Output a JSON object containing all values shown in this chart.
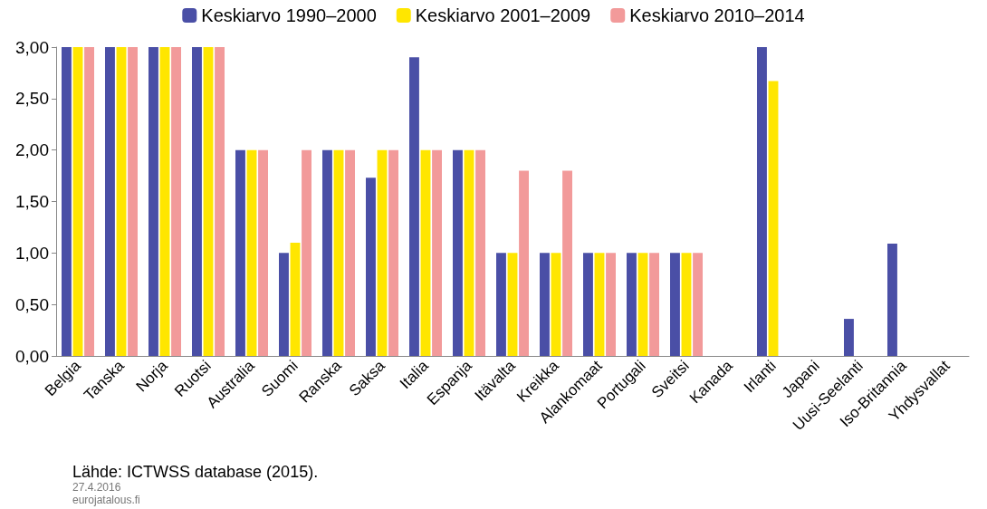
{
  "chart_data": {
    "type": "bar",
    "categories": [
      "Belgia",
      "Tanska",
      "Norja",
      "Ruotsi",
      "Australia",
      "Suomi",
      "Ranska",
      "Saksa",
      "Italia",
      "Espanja",
      "Itävalta",
      "Kreikka",
      "Alankomaat",
      "Portugali",
      "Sveitsi",
      "Kanada",
      "Irlanti",
      "Japani",
      "Uusi-Seelanti",
      "Iso-Britannia",
      "Yhdysvallat"
    ],
    "series": [
      {
        "name": "Keskiarvo 1990–2000",
        "color": "#4a4fa6",
        "values": [
          3,
          3,
          3,
          3,
          2,
          1,
          2,
          1.73,
          2.9,
          2,
          1,
          1,
          1,
          1,
          1,
          0,
          3,
          0,
          0.36,
          1.09,
          0
        ]
      },
      {
        "name": "Keskiarvo 2001–2009",
        "color": "#ffe600",
        "values": [
          3,
          3,
          3,
          3,
          2,
          1.1,
          2,
          2,
          2,
          2,
          1,
          1,
          1,
          1,
          1,
          0,
          2.67,
          0,
          0,
          0,
          0
        ]
      },
      {
        "name": "Keskiarvo 2010–2014",
        "color": "#f29a9a",
        "values": [
          3,
          3,
          3,
          3,
          2,
          2,
          2,
          2,
          2,
          2,
          1.8,
          1.8,
          1,
          1,
          1,
          0,
          0,
          0,
          0,
          0,
          0
        ]
      }
    ],
    "ylim": [
      0,
      3
    ],
    "yticks": [
      {
        "value": 0,
        "label": "0,00"
      },
      {
        "value": 0.5,
        "label": "0,50"
      },
      {
        "value": 1,
        "label": "1,00"
      },
      {
        "value": 1.5,
        "label": "1,50"
      },
      {
        "value": 2,
        "label": "2,00"
      },
      {
        "value": 2.5,
        "label": "2,50"
      },
      {
        "value": 3,
        "label": "3,00"
      }
    ],
    "grid": false,
    "legend": "top",
    "annotations": [
      "Lähde: ICTWSS database (2015).",
      "27.4.2016",
      "eurojatalous.fi"
    ]
  }
}
